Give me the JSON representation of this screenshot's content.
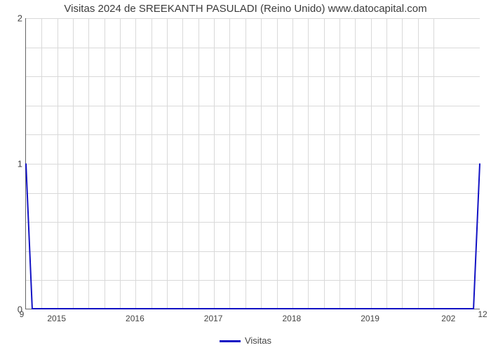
{
  "chart": {
    "type": "line",
    "title": "Visitas 2024 de SREEKANTH PASULADI (Reino Unido) www.datocapital.com",
    "title_fontsize": 15,
    "title_color": "#3b3b3b",
    "background_color": "#ffffff",
    "grid_color": "#d9d9d9",
    "axis_color": "#666666",
    "tick_label_color": "#444444",
    "tick_fontsize": 13,
    "x_tick_fontsize": 12,
    "x": {
      "min": 2014.6,
      "max": 2020.4,
      "major_ticks": [
        2015,
        2016,
        2017,
        2018,
        2019
      ],
      "minor_ticks_per_interval": 4
    },
    "y": {
      "min": 0,
      "max": 2,
      "major_ticks": [
        0,
        1,
        2
      ],
      "minor_gridlines": [
        0.2,
        0.4,
        0.6,
        0.8,
        1.2,
        1.4,
        1.6,
        1.8
      ]
    },
    "secondary_labels": {
      "bottom_left": "9",
      "bottom_right": "12"
    },
    "series": [
      {
        "name": "Visitas",
        "color": "#1212c4",
        "line_width": 2,
        "points": [
          {
            "x": 2014.6,
            "y": 1.0
          },
          {
            "x": 2014.68,
            "y": 0.0
          },
          {
            "x": 2020.32,
            "y": 0.0
          },
          {
            "x": 2020.4,
            "y": 1.0
          }
        ]
      }
    ],
    "legend": {
      "position": "bottom-center",
      "label": "Visitas",
      "swatch_color": "#1212c4",
      "fontsize": 13
    }
  }
}
